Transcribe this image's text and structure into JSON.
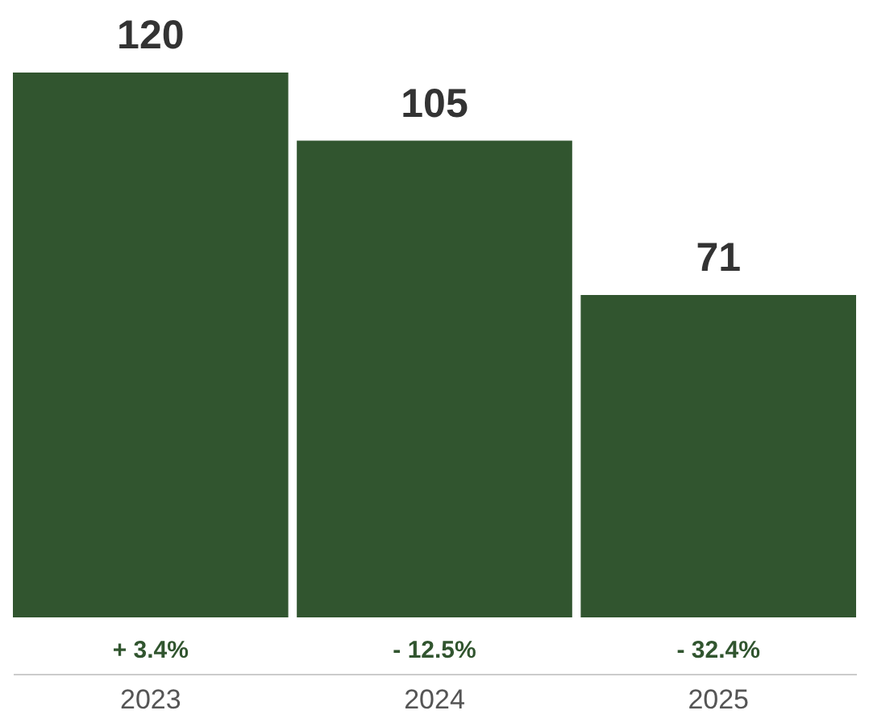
{
  "chart_data": {
    "type": "bar",
    "categories": [
      "2023",
      "2024",
      "2025"
    ],
    "values": [
      120,
      105,
      71
    ],
    "color": "#31552f",
    "data_labels": true,
    "annotations": [
      "+ 3.4%",
      "- 12.5%",
      "- 32.4%"
    ]
  }
}
